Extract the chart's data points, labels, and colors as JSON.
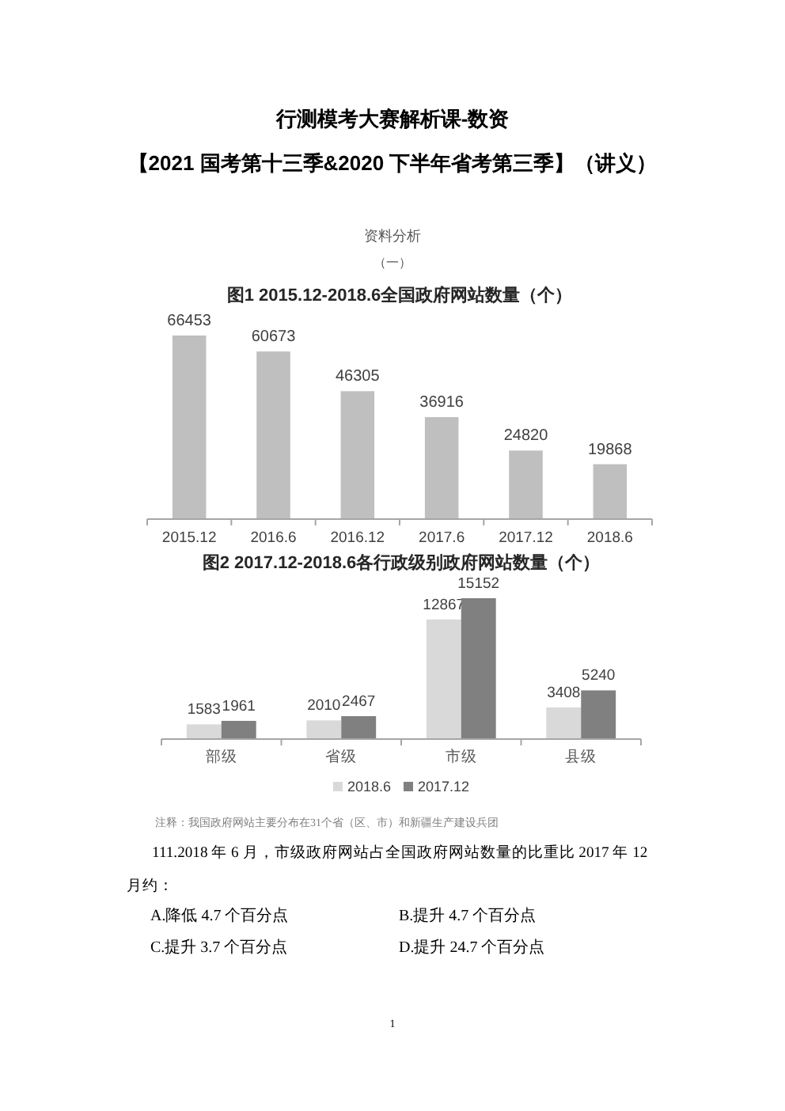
{
  "chart_data": [
    {
      "type": "bar",
      "title": "图1 2015.12-2018.6全国政府网站数量（个）",
      "categories": [
        "2015.12",
        "2016.6",
        "2016.12",
        "2017.6",
        "2017.12",
        "2018.6"
      ],
      "values": [
        66453,
        60673,
        46305,
        36916,
        24820,
        19868
      ],
      "color": "#bfbfbf",
      "data_labels": true,
      "legend": false,
      "annotations": [
        "行测模考大赛解析课-数资",
        "【2021 国考第十三季&2020 下半年省考第三季】（讲义）",
        "资料分析",
        "（一）"
      ]
    },
    {
      "type": "bar",
      "title": "图2 2017.12-2018.6各行政级别政府网站数量（个）",
      "categories": [
        "部级",
        "省级",
        "市级",
        "县级"
      ],
      "series": [
        {
          "name": "2018.6",
          "color": "#d9d9d9",
          "values": [
            1583,
            2010,
            12867,
            3408
          ]
        },
        {
          "name": "2017.12",
          "color": "#808080",
          "values": [
            1961,
            2467,
            15152,
            5240
          ]
        }
      ],
      "data_labels": true,
      "legend": "bottom",
      "annotations": [
        "注释：我国政府网站主要分布在31个省（区、市）和新疆生产建设兵团",
        "111.2018 年 6 月，市级政府网站占全国政府网站数量的比重比 2017 年 12 月约：",
        "A.降低 4.7 个百分点",
        "B.提升 4.7 个百分点",
        "C.提升 3.7 个百分点",
        "D.提升 24.7 个百分点",
        "1"
      ]
    }
  ]
}
